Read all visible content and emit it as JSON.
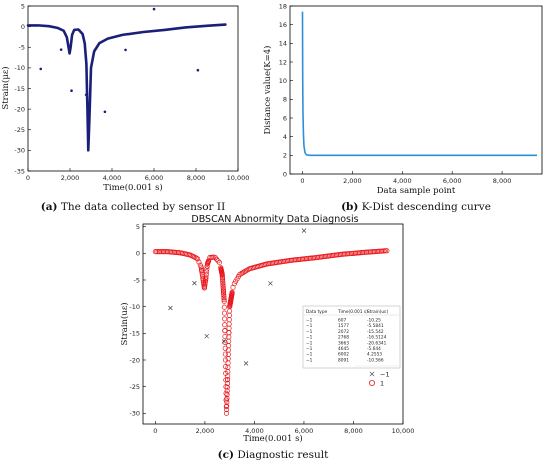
{
  "chart_data": [
    {
      "id": "a",
      "type": "line",
      "caption_tag": "(a)",
      "caption_text": "The data collected by sensor II",
      "xlabel": "Time(0.001 s)",
      "ylabel": "Strain(με)",
      "xlim": [
        0,
        10000
      ],
      "ylim": [
        -35,
        5
      ],
      "xticks": [
        0,
        2000,
        4000,
        6000,
        8000,
        10000
      ],
      "xtick_labels": [
        "0",
        "2,000",
        "4,000",
        "6,000",
        "8,000",
        "10,000"
      ],
      "yticks": [
        5,
        0,
        -5,
        -10,
        -15,
        -20,
        -25,
        -30,
        -35
      ],
      "ytick_labels": [
        "5",
        "0",
        "-5",
        "-10",
        "-15",
        "-20",
        "-25",
        "-30",
        "-35"
      ],
      "line_color": "#1a1f7a",
      "line_points": [
        [
          0,
          0.3
        ],
        [
          500,
          0.3
        ],
        [
          1000,
          0.1
        ],
        [
          1400,
          -0.3
        ],
        [
          1700,
          -1.0
        ],
        [
          1850,
          -2.6
        ],
        [
          1930,
          -5.0
        ],
        [
          1980,
          -6.5
        ],
        [
          2030,
          -5.0
        ],
        [
          2100,
          -2.0
        ],
        [
          2200,
          -0.8
        ],
        [
          2400,
          -0.7
        ],
        [
          2600,
          -1.8
        ],
        [
          2700,
          -4.0
        ],
        [
          2780,
          -9.0
        ],
        [
          2830,
          -20.0
        ],
        [
          2870,
          -30.0
        ],
        [
          2920,
          -23.0
        ],
        [
          3000,
          -10.0
        ],
        [
          3150,
          -6.0
        ],
        [
          3400,
          -4.0
        ],
        [
          3800,
          -2.9
        ],
        [
          4500,
          -2.0
        ],
        [
          5500,
          -1.3
        ],
        [
          6500,
          -0.8
        ],
        [
          7500,
          -0.2
        ],
        [
          8500,
          0.2
        ],
        [
          9400,
          0.5
        ]
      ],
      "outliers": [
        [
          607,
          -10.25
        ],
        [
          1577,
          -5.5841
        ],
        [
          2072,
          -15.542
        ],
        [
          2768,
          -16.5124
        ],
        [
          3663,
          -20.6341
        ],
        [
          4645,
          -5.644
        ],
        [
          6002,
          4.2553
        ],
        [
          8091,
          -10.566
        ]
      ]
    },
    {
      "id": "b",
      "type": "line",
      "caption_tag": "(b)",
      "caption_text": "K-Dist descending curve",
      "xlabel": "Data sample point",
      "ylabel": "Distance value(K=4)",
      "xlim": [
        -500,
        9600
      ],
      "ylim": [
        0,
        18
      ],
      "xticks": [
        0,
        2000,
        4000,
        6000,
        8000
      ],
      "xtick_labels": [
        "0",
        "2,000",
        "4,000",
        "6,000",
        "8,000"
      ],
      "yticks": [
        0,
        2,
        4,
        6,
        8,
        10,
        12,
        14,
        16,
        18
      ],
      "ytick_labels": [
        "0",
        "2",
        "4",
        "6",
        "8",
        "10",
        "12",
        "14",
        "16",
        "18"
      ],
      "line_color": "#2f8fd6",
      "line_points": [
        [
          0,
          17.4
        ],
        [
          10,
          10.0
        ],
        [
          20,
          6.5
        ],
        [
          40,
          4.2
        ],
        [
          60,
          3.0
        ],
        [
          100,
          2.3
        ],
        [
          160,
          2.05
        ],
        [
          300,
          2.0
        ],
        [
          1000,
          2.0
        ],
        [
          4000,
          2.0
        ],
        [
          9400,
          2.0
        ]
      ]
    },
    {
      "id": "c",
      "type": "scatter",
      "caption_tag": "(c)",
      "caption_text": "Diagnostic result",
      "title": "DBSCAN Abnormity Data Diagnosis",
      "xlabel": "Time(0.001 s)",
      "ylabel": "Strain(uε)",
      "xlim": [
        -500,
        10000
      ],
      "ylim": [
        -32,
        5.5
      ],
      "xticks": [
        0,
        2000,
        4000,
        6000,
        8000,
        10000
      ],
      "xtick_labels": [
        "0",
        "2,000",
        "4,000",
        "6,000",
        "8,000",
        "10,000"
      ],
      "yticks": [
        5,
        0,
        -5,
        -10,
        -15,
        -20,
        -25,
        -30
      ],
      "ytick_labels": [
        "5",
        "0",
        "-5",
        "-10",
        "-15",
        "-20",
        "-25",
        "-30"
      ],
      "series": [
        {
          "name": "−1",
          "marker": "x",
          "color": "#444444"
        },
        {
          "name": "1",
          "marker": "o",
          "color": "#e8181d"
        }
      ],
      "table": {
        "headers": [
          "Data type",
          "Time(0.001 s)",
          "Strain(uε)"
        ],
        "rows": [
          [
            "−1",
            "607",
            "-10.25"
          ],
          [
            "−1",
            "1577",
            "-5.5841"
          ],
          [
            "−1",
            "2072",
            "-15.542"
          ],
          [
            "−1",
            "2768",
            "-16.5124"
          ],
          [
            "−1",
            "3663",
            "-20.6341"
          ],
          [
            "−1",
            "4645",
            "-5.644"
          ],
          [
            "−1",
            "6002",
            "4.2553"
          ],
          [
            "−1",
            "8091",
            "-10.566"
          ]
        ]
      },
      "legend": [
        {
          "symbol": "×",
          "label": "−1"
        },
        {
          "symbol": "○",
          "label": "1"
        }
      ]
    }
  ]
}
